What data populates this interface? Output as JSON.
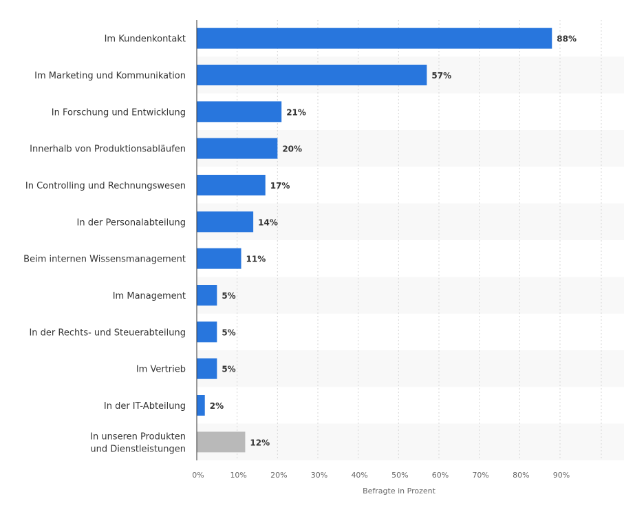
{
  "chart_data": {
    "type": "bar",
    "orientation": "horizontal",
    "categories": [
      "Im Kundenkontakt",
      "Im Marketing und Kommunikation",
      "In Forschung und Entwicklung",
      "Innerhalb von Produktionsabläufen",
      "In Controlling und Rechnungswesen",
      "In der Personalabteilung",
      "Beim internen Wissensmanagement",
      "Im Management",
      "In der Rechts- und Steuerabteilung",
      "Im Vertrieb",
      "In der IT-Abteilung",
      "In unseren Produkten und Dienstleistungen"
    ],
    "values": [
      88,
      57,
      21,
      20,
      17,
      14,
      11,
      5,
      5,
      5,
      2,
      12
    ],
    "value_labels": [
      "88%",
      "57%",
      "21%",
      "20%",
      "17%",
      "14%",
      "11%",
      "5%",
      "5%",
      "5%",
      "2%",
      "12%"
    ],
    "bar_colors": [
      "#2876dd",
      "#2876dd",
      "#2876dd",
      "#2876dd",
      "#2876dd",
      "#2876dd",
      "#2876dd",
      "#2876dd",
      "#2876dd",
      "#2876dd",
      "#2876dd",
      "#b9b9b9"
    ],
    "xlabel": "Befragte in Prozent",
    "ylabel": "",
    "xlim": [
      0,
      100
    ],
    "xticks": [
      0,
      10,
      20,
      30,
      40,
      50,
      60,
      70,
      80,
      90
    ],
    "xtick_labels": [
      "0%",
      "10%",
      "20%",
      "30%",
      "40%",
      "50%",
      "60%",
      "70%",
      "80%",
      "90%"
    ],
    "grid": true,
    "legend": "none"
  },
  "colors": {
    "bar_primary": "#2876dd",
    "bar_highlight": "#b9b9b9",
    "band_alt": "#f8f8f8",
    "grid": "#d6d6d6",
    "axis": "#333333"
  }
}
